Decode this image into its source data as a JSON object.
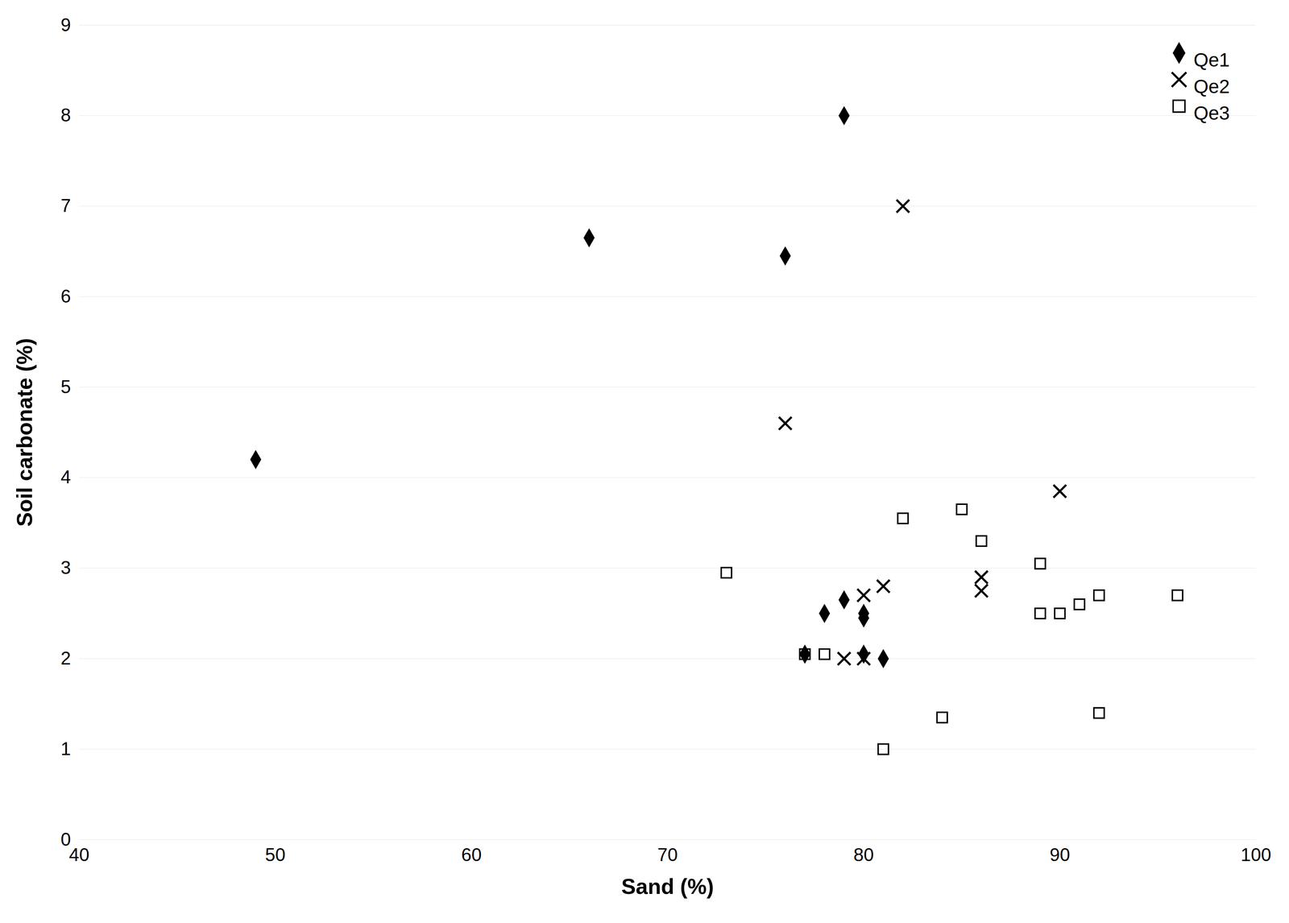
{
  "chart_data": {
    "type": "scatter",
    "xlabel": "Sand (%)",
    "ylabel": "Soil carbonate (%)",
    "xlim": [
      40,
      100
    ],
    "ylim": [
      0,
      9
    ],
    "xticks": [
      40,
      50,
      60,
      70,
      80,
      90,
      100
    ],
    "yticks": [
      0,
      1,
      2,
      3,
      4,
      5,
      6,
      7,
      8,
      9
    ],
    "grid": "y",
    "legend": "upper right",
    "series": [
      {
        "name": "Qe1",
        "color": "#000000",
        "marker": "diamond",
        "x": [
          49,
          66,
          76,
          79,
          77,
          78,
          79,
          80,
          81,
          80,
          80
        ],
        "values": [
          4.2,
          6.65,
          6.45,
          8.0,
          2.05,
          2.5,
          2.65,
          2.05,
          2.0,
          2.5,
          2.45
        ]
      },
      {
        "name": "Qe2",
        "color": "#000000",
        "marker": "x",
        "x": [
          76,
          80,
          79,
          80,
          82,
          81,
          86,
          86,
          90
        ],
        "values": [
          4.6,
          2.0,
          2.0,
          2.7,
          7.0,
          2.8,
          2.75,
          2.9,
          3.85
        ]
      },
      {
        "name": "Qe3",
        "color": "#000000",
        "marker": "open_square",
        "x": [
          73,
          77,
          78,
          81,
          82,
          84,
          85,
          86,
          89,
          89,
          90,
          91,
          92,
          92,
          96
        ],
        "values": [
          2.95,
          2.05,
          2.05,
          1.0,
          3.55,
          1.35,
          3.65,
          3.3,
          2.5,
          3.05,
          2.5,
          2.6,
          2.7,
          1.4,
          2.7
        ]
      }
    ]
  }
}
